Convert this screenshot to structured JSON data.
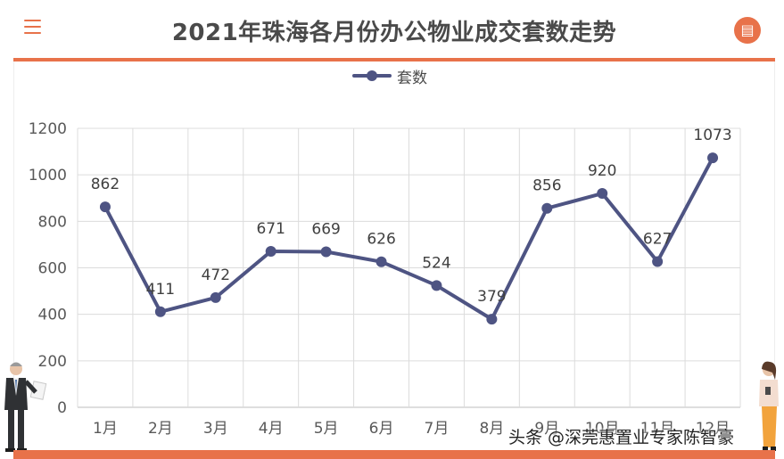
{
  "header": {
    "title": "2021年珠海各月份办公物业成交套数走势",
    "menu_icon": "hamburger-menu-icon",
    "comment_icon": "comment-icon",
    "accent_color": "#e8724a"
  },
  "watermark": "头条 @深莞惠置业专家陈智豪",
  "chart_data": {
    "type": "line",
    "categories": [
      "1月",
      "2月",
      "3月",
      "4月",
      "5月",
      "6月",
      "7月",
      "8月",
      "9月",
      "10月",
      "11月",
      "12月"
    ],
    "series": [
      {
        "name": "套数",
        "values": [
          862,
          411,
          472,
          671,
          669,
          626,
          524,
          379,
          856,
          920,
          627,
          1073
        ],
        "color": "#4e5483"
      }
    ],
    "title": "2021年珠海各月份办公物业成交套数走势",
    "ylim": [
      0,
      1200
    ],
    "yticks": [
      0,
      200,
      400,
      600,
      800,
      1000,
      1200
    ],
    "grid": true,
    "legend_position": "top-center",
    "data_labels": true
  }
}
